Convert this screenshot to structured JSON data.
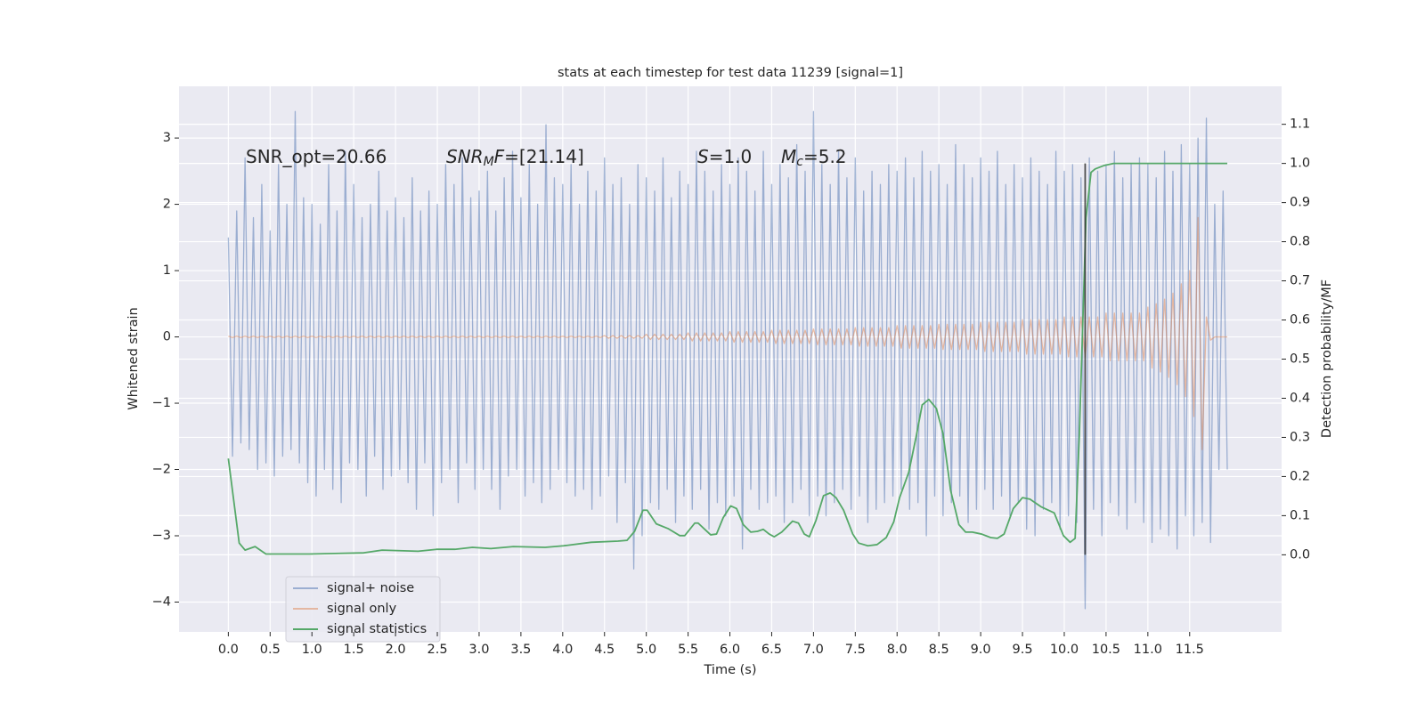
{
  "chart_data": {
    "type": "line",
    "title": "stats at each timestep for test data 11239 [signal=1]",
    "xlabel": "Time (s)",
    "ylabel": "Whitened strain",
    "y2label": "Detection probability/MF",
    "xlim": [
      -0.59,
      12.6
    ],
    "ylim": [
      -4.45,
      3.78
    ],
    "y2lim": [
      -0.197,
      1.197
    ],
    "xticks": [
      {
        "value": 0,
        "label": "0.0"
      },
      0.5,
      {
        "value": 1,
        "label": "1.0"
      },
      1.5,
      {
        "value": 2,
        "label": "2.0"
      },
      2.5,
      {
        "value": 3,
        "label": "3.0"
      },
      3.5,
      {
        "value": 4,
        "label": "4.0"
      },
      4.5,
      {
        "value": 5,
        "label": "5.0"
      },
      5.5,
      {
        "value": 6,
        "label": "6.0"
      },
      6.5,
      {
        "value": 7,
        "label": "7.0"
      },
      7.5,
      {
        "value": 8,
        "label": "8.0"
      },
      8.5,
      {
        "value": 9,
        "label": "9.0"
      },
      9.5,
      {
        "value": 10,
        "label": "10.0"
      },
      10.5,
      {
        "value": 11,
        "label": "11.0"
      },
      11.5
    ],
    "yticks": [
      {
        "value": -4,
        "label": "−4"
      },
      {
        "value": -3,
        "label": "−3"
      },
      {
        "value": -2,
        "label": "−2"
      },
      {
        "value": -1,
        "label": "−1"
      },
      0,
      1,
      2,
      3
    ],
    "y2ticks": [
      {
        "value": 0,
        "label": "0.0"
      },
      0.1,
      0.2,
      0.3,
      0.4,
      0.5,
      0.6,
      0.7,
      0.8,
      0.9,
      {
        "value": 1,
        "label": "1.0"
      },
      1.1
    ],
    "grid": true,
    "legend": "lower left",
    "x": [
      0,
      0.05,
      0.1,
      0.15,
      0.2,
      0.25,
      0.3,
      0.35,
      0.4,
      0.45,
      0.5,
      0.55,
      0.6,
      0.65,
      0.7,
      0.75,
      0.8,
      0.85,
      0.9,
      0.95,
      1,
      1.05,
      1.1,
      1.15,
      1.2,
      1.25,
      1.3,
      1.35,
      1.4,
      1.45,
      1.5,
      1.55,
      1.6,
      1.65,
      1.7,
      1.75,
      1.8,
      1.85,
      1.9,
      1.95,
      2,
      2.05,
      2.1,
      2.15,
      2.2,
      2.25,
      2.3,
      2.35,
      2.4,
      2.45,
      2.5,
      2.55,
      2.6,
      2.65,
      2.7,
      2.75,
      2.8,
      2.85,
      2.9,
      2.95,
      3,
      3.05,
      3.1,
      3.15,
      3.2,
      3.25,
      3.3,
      3.35,
      3.4,
      3.45,
      3.5,
      3.55,
      3.6,
      3.65,
      3.7,
      3.75,
      3.8,
      3.85,
      3.9,
      3.95,
      4,
      4.05,
      4.1,
      4.15,
      4.2,
      4.25,
      4.3,
      4.35,
      4.4,
      4.45,
      4.5,
      4.55,
      4.6,
      4.65,
      4.7,
      4.75,
      4.8,
      4.85,
      4.9,
      4.95,
      5,
      5.05,
      5.1,
      5.15,
      5.2,
      5.25,
      5.3,
      5.35,
      5.4,
      5.45,
      5.5,
      5.55,
      5.6,
      5.65,
      5.7,
      5.75,
      5.8,
      5.85,
      5.9,
      5.95,
      6,
      6.05,
      6.1,
      6.15,
      6.2,
      6.25,
      6.3,
      6.35,
      6.4,
      6.45,
      6.5,
      6.55,
      6.6,
      6.65,
      6.7,
      6.75,
      6.8,
      6.85,
      6.9,
      6.95,
      7,
      7.05,
      7.1,
      7.15,
      7.2,
      7.25,
      7.3,
      7.35,
      7.4,
      7.45,
      7.5,
      7.55,
      7.6,
      7.65,
      7.7,
      7.75,
      7.8,
      7.85,
      7.9,
      7.95,
      8,
      8.05,
      8.1,
      8.15,
      8.2,
      8.25,
      8.3,
      8.35,
      8.4,
      8.45,
      8.5,
      8.55,
      8.6,
      8.65,
      8.7,
      8.75,
      8.8,
      8.85,
      8.9,
      8.95,
      9,
      9.05,
      9.1,
      9.15,
      9.2,
      9.25,
      9.3,
      9.35,
      9.4,
      9.45,
      9.5,
      9.55,
      9.6,
      9.65,
      9.7,
      9.75,
      9.8,
      9.85,
      9.9,
      9.95,
      10,
      10.05,
      10.1,
      10.15,
      10.2,
      10.25,
      10.3,
      10.35,
      10.4,
      10.45,
      10.5,
      10.55,
      10.6,
      10.65,
      10.7,
      10.75,
      10.8,
      10.85,
      10.9,
      10.95,
      11,
      11.05,
      11.1,
      11.15,
      11.2,
      11.25,
      11.3,
      11.35,
      11.4,
      11.45,
      11.5,
      11.55,
      11.6,
      11.65,
      11.7,
      11.75,
      11.8,
      11.85,
      11.9,
      11.95
    ],
    "series": [
      {
        "name": "signal+ noise",
        "color": "#4c72b0",
        "opacity": 0.5,
        "values": [
          1.5,
          -1.8,
          1.9,
          -1.6,
          2.7,
          -1.7,
          1.8,
          -2.0,
          2.3,
          -1.9,
          1.6,
          -2.1,
          2.6,
          -1.8,
          2.0,
          -1.7,
          3.4,
          -1.9,
          2.1,
          -2.2,
          2.0,
          -2.4,
          1.7,
          -2.0,
          2.6,
          -2.3,
          1.9,
          -2.5,
          2.8,
          -1.9,
          2.3,
          -2.0,
          1.8,
          -2.4,
          2.0,
          -1.8,
          2.5,
          -2.3,
          1.9,
          -2.1,
          2.1,
          -2.0,
          1.8,
          -2.2,
          2.4,
          -2.6,
          1.9,
          -1.9,
          2.2,
          -2.7,
          2.0,
          -2.2,
          2.6,
          -2.0,
          2.3,
          -2.5,
          2.7,
          -1.9,
          2.1,
          -2.3,
          2.2,
          -2.0,
          2.5,
          -2.3,
          1.9,
          -2.6,
          2.4,
          -2.1,
          2.8,
          -2.0,
          2.1,
          -2.4,
          2.6,
          -2.2,
          2.0,
          -2.5,
          3.2,
          -2.3,
          2.4,
          -2.0,
          2.3,
          -2.2,
          2.6,
          -2.4,
          2.0,
          -2.3,
          2.5,
          -2.6,
          2.2,
          -2.4,
          2.7,
          -2.1,
          2.3,
          -2.8,
          2.4,
          -2.2,
          2.0,
          -3.5,
          2.6,
          -3.0,
          2.4,
          -2.5,
          2.2,
          -2.6,
          2.7,
          -2.3,
          2.1,
          -2.8,
          2.5,
          -2.4,
          2.3,
          -2.6,
          2.8,
          -2.3,
          2.5,
          -2.9,
          2.2,
          -2.5,
          2.6,
          -2.7,
          2.3,
          -2.4,
          2.7,
          -3.2,
          2.5,
          -2.3,
          2.2,
          -2.6,
          2.8,
          -2.5,
          2.3,
          -2.4,
          2.6,
          -2.8,
          2.4,
          -2.5,
          2.9,
          -2.3,
          2.5,
          -2.7,
          3.4,
          -2.4,
          2.6,
          -2.7,
          2.3,
          -2.5,
          2.8,
          -2.3,
          2.4,
          -2.6,
          2.7,
          -2.4,
          2.2,
          -2.8,
          2.5,
          -2.6,
          2.3,
          -2.5,
          2.6,
          -2.4,
          2.5,
          -2.3,
          2.7,
          -2.6,
          2.4,
          -2.5,
          2.8,
          -3.0,
          2.5,
          -2.4,
          2.6,
          -2.7,
          2.3,
          -2.5,
          2.9,
          -2.4,
          2.6,
          -2.8,
          2.4,
          -2.6,
          2.7,
          -2.3,
          2.5,
          -2.6,
          2.8,
          -2.4,
          2.3,
          -2.7,
          2.6,
          -2.5,
          2.4,
          -2.9,
          2.7,
          -3.0,
          2.5,
          -2.6,
          2.3,
          -2.5,
          2.8,
          -2.9,
          2.5,
          -2.7,
          2.6,
          -2.8,
          2.4,
          -4.1,
          2.7,
          -2.6,
          2.5,
          -3.0,
          2.6,
          -2.5,
          2.8,
          -2.7,
          2.4,
          -2.9,
          2.6,
          -2.5,
          2.7,
          -2.8,
          2.6,
          -3.1,
          2.4,
          -2.9,
          2.8,
          -3.0,
          2.5,
          -3.2,
          2.9,
          -2.7,
          2.6,
          -3.0,
          3.0,
          -2.8,
          3.3,
          -3.1,
          2.0,
          -2.0,
          2.2,
          -2.0
        ]
      },
      {
        "name": "signal only",
        "color": "#dd8452",
        "opacity": 0.5,
        "values": [
          0.01,
          -0.01,
          0.01,
          -0.01,
          0.01,
          -0.01,
          0.01,
          -0.01,
          0.01,
          -0.01,
          0.01,
          -0.01,
          0.01,
          -0.01,
          0.01,
          -0.01,
          0.01,
          -0.01,
          0.01,
          -0.01,
          0.01,
          -0.01,
          0.01,
          -0.01,
          0.01,
          -0.01,
          0.01,
          -0.01,
          0.01,
          -0.01,
          0.01,
          -0.01,
          0.01,
          -0.01,
          0.01,
          -0.01,
          0.01,
          -0.01,
          0.01,
          -0.01,
          0.01,
          -0.01,
          0.01,
          -0.01,
          0.01,
          -0.01,
          0.01,
          -0.01,
          0.01,
          -0.01,
          0.01,
          -0.01,
          0.01,
          -0.01,
          0.01,
          -0.01,
          0.01,
          -0.01,
          0.01,
          -0.01,
          0.01,
          -0.01,
          0.01,
          -0.01,
          0.01,
          -0.01,
          0.01,
          -0.01,
          0.01,
          -0.01,
          0.01,
          -0.01,
          0.01,
          -0.01,
          0.01,
          -0.01,
          0.01,
          -0.01,
          0.01,
          -0.01,
          0.01,
          -0.01,
          0.01,
          -0.01,
          0.01,
          -0.01,
          0.01,
          -0.01,
          0.01,
          -0.01,
          0.02,
          -0.02,
          0.02,
          -0.02,
          0.02,
          -0.02,
          0.02,
          -0.02,
          0.02,
          -0.02,
          0.04,
          -0.04,
          0.04,
          -0.04,
          0.04,
          -0.04,
          0.04,
          -0.04,
          0.04,
          -0.04,
          0.06,
          -0.06,
          0.06,
          -0.06,
          0.06,
          -0.06,
          0.06,
          -0.06,
          0.06,
          -0.06,
          0.08,
          -0.08,
          0.08,
          -0.08,
          0.08,
          -0.08,
          0.08,
          -0.08,
          0.08,
          -0.08,
          0.1,
          -0.1,
          0.1,
          -0.1,
          0.1,
          -0.1,
          0.1,
          -0.1,
          0.1,
          -0.1,
          0.12,
          -0.12,
          0.12,
          -0.12,
          0.12,
          -0.12,
          0.12,
          -0.12,
          0.12,
          -0.12,
          0.14,
          -0.14,
          0.14,
          -0.14,
          0.14,
          -0.14,
          0.14,
          -0.14,
          0.14,
          -0.14,
          0.17,
          -0.17,
          0.17,
          -0.17,
          0.17,
          -0.17,
          0.17,
          -0.17,
          0.17,
          -0.17,
          0.19,
          -0.19,
          0.19,
          -0.19,
          0.19,
          -0.19,
          0.19,
          -0.19,
          0.19,
          -0.19,
          0.22,
          -0.22,
          0.22,
          -0.22,
          0.22,
          -0.22,
          0.22,
          -0.22,
          0.22,
          -0.22,
          0.26,
          -0.26,
          0.26,
          -0.26,
          0.26,
          -0.26,
          0.26,
          -0.26,
          0.26,
          -0.26,
          0.3,
          -0.3,
          0.3,
          -0.3,
          0.3,
          -0.3,
          0.3,
          -0.3,
          0.3,
          -0.3,
          0.36,
          -0.36,
          0.36,
          -0.36,
          0.36,
          -0.36,
          0.36,
          -0.36,
          0.36,
          -0.36,
          0.45,
          -0.47,
          0.5,
          -0.53,
          0.57,
          -0.61,
          0.66,
          -0.72,
          0.8,
          -0.9,
          1.0,
          -1.2,
          1.8,
          -1.7,
          0.3,
          -0.05,
          0,
          0,
          0,
          0
        ]
      },
      {
        "name": "signal statistics",
        "color": "#55a868",
        "axis": "y2",
        "x": [
          0,
          0.13,
          0.2,
          0.32,
          0.45,
          0.97,
          1.62,
          1.84,
          2.27,
          2.49,
          2.71,
          2.92,
          3.14,
          3.41,
          3.79,
          4.01,
          4.34,
          4.66,
          4.77,
          4.86,
          4.96,
          5.01,
          5.12,
          5.26,
          5.4,
          5.46,
          5.58,
          5.62,
          5.7,
          5.77,
          5.84,
          5.92,
          6.01,
          6.08,
          6.16,
          6.25,
          6.33,
          6.4,
          6.47,
          6.53,
          6.62,
          6.75,
          6.82,
          6.89,
          6.95,
          7.03,
          7.12,
          7.2,
          7.27,
          7.36,
          7.47,
          7.54,
          7.65,
          7.76,
          7.87,
          7.96,
          8.03,
          8.14,
          8.23,
          8.3,
          8.38,
          8.47,
          8.55,
          8.64,
          8.74,
          8.82,
          8.9,
          9.01,
          9.12,
          9.2,
          9.28,
          9.39,
          9.5,
          9.59,
          9.72,
          9.88,
          9.99,
          10.07,
          10.13,
          10.18,
          10.26,
          10.32,
          10.37,
          10.48,
          10.59,
          11.95
        ],
        "values": [
          0.246,
          0.03,
          0.012,
          0.021,
          0.002,
          0.002,
          0.005,
          0.012,
          0.009,
          0.014,
          0.014,
          0.019,
          0.016,
          0.021,
          0.019,
          0.023,
          0.032,
          0.035,
          0.037,
          0.06,
          0.114,
          0.114,
          0.079,
          0.067,
          0.049,
          0.049,
          0.081,
          0.081,
          0.065,
          0.051,
          0.053,
          0.095,
          0.125,
          0.118,
          0.077,
          0.058,
          0.06,
          0.065,
          0.053,
          0.046,
          0.058,
          0.086,
          0.081,
          0.053,
          0.046,
          0.088,
          0.151,
          0.158,
          0.146,
          0.114,
          0.053,
          0.03,
          0.023,
          0.026,
          0.044,
          0.084,
          0.146,
          0.211,
          0.304,
          0.383,
          0.397,
          0.374,
          0.309,
          0.165,
          0.077,
          0.058,
          0.058,
          0.053,
          0.044,
          0.042,
          0.053,
          0.118,
          0.146,
          0.142,
          0.123,
          0.107,
          0.049,
          0.032,
          0.042,
          0.304,
          0.861,
          0.977,
          0.986,
          0.995,
          1.0,
          1.0
        ]
      }
    ],
    "vlines": [
      {
        "x": 10.25,
        "y2min": 0,
        "y2max": 1.0,
        "color": "#333333"
      }
    ],
    "annotations": [
      {
        "parts": [
          {
            "text": "SNR_opt=20.66"
          }
        ]
      },
      {
        "parts": [
          {
            "text": "SNR",
            "italic": true
          },
          {
            "text": "M",
            "italic": true,
            "sub": true
          },
          {
            "text": "F",
            "italic": true
          },
          {
            "text": "=[21.14]"
          }
        ]
      },
      {
        "parts": [
          {
            "text": "S",
            "italic": true
          },
          {
            "text": "=1.0"
          }
        ]
      },
      {
        "parts": [
          {
            "text": "M",
            "italic": true
          },
          {
            "text": "c",
            "italic": true,
            "sub": true
          },
          {
            "text": "=5.2"
          }
        ]
      }
    ]
  }
}
